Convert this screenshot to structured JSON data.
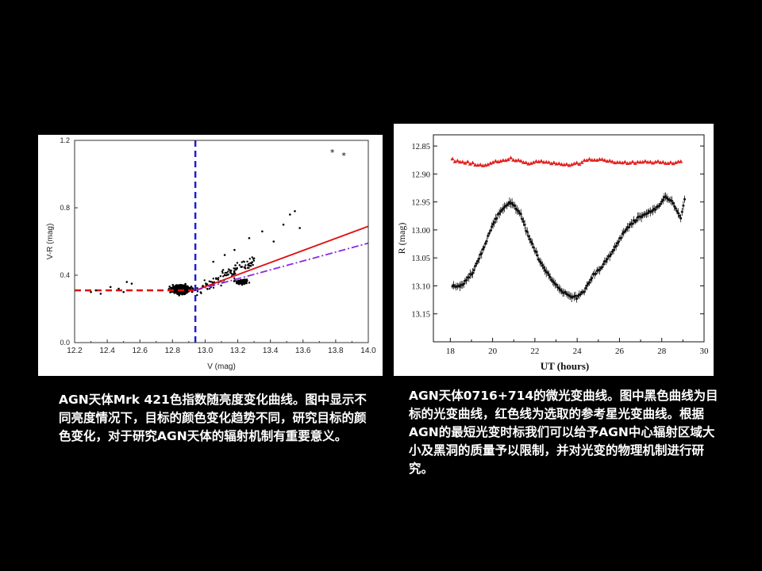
{
  "chart_data": [
    {
      "type": "scatter",
      "title": "",
      "xlabel": "V (mag)",
      "ylabel": "V-R (mag)",
      "xlim": [
        12.2,
        14.0
      ],
      "ylim": [
        0.0,
        1.2
      ],
      "xticks": [
        "12.2",
        "12.4",
        "12.6",
        "12.8",
        "13.0",
        "13.2",
        "13.4",
        "13.6",
        "13.8",
        "14.0"
      ],
      "yticks": [
        "0.0",
        "0.4",
        "0.8",
        "1.2"
      ],
      "vertical_line": {
        "x": 12.94,
        "style": "dashed",
        "color": "#1f1fd0"
      },
      "series": [
        {
          "type": "line",
          "color": "#e01010",
          "style": "dashed",
          "x": [
            12.2,
            12.94
          ],
          "y": [
            0.31,
            0.31
          ]
        },
        {
          "type": "line",
          "color": "#e01010",
          "style": "solid",
          "x": [
            12.94,
            14.0
          ],
          "y": [
            0.31,
            0.69
          ]
        },
        {
          "type": "line",
          "color": "#8a2be2",
          "style": "dashdot",
          "x": [
            12.94,
            14.0
          ],
          "y": [
            0.31,
            0.59
          ]
        },
        {
          "type": "scatter",
          "color": "#000000",
          "x": [
            12.3,
            12.33,
            12.36,
            12.42,
            12.47,
            12.5,
            12.52,
            12.55,
            13.05,
            13.12,
            13.18,
            13.27,
            13.35,
            13.42,
            13.48,
            13.52,
            13.55,
            13.58,
            13.12,
            13.22,
            13.3
          ],
          "y": [
            0.3,
            0.31,
            0.29,
            0.33,
            0.32,
            0.3,
            0.36,
            0.35,
            0.48,
            0.52,
            0.55,
            0.62,
            0.66,
            0.6,
            0.7,
            0.76,
            0.78,
            0.68,
            0.4,
            0.45,
            0.5
          ]
        },
        {
          "type": "scatter",
          "marker": "star",
          "color": "#000000",
          "x": [
            13.78,
            13.85
          ],
          "y": [
            1.13,
            1.11
          ]
        }
      ]
    },
    {
      "type": "line",
      "title": "",
      "xlabel": "UT  (hours)",
      "ylabel": "R  (mag)",
      "xlim": [
        17.2,
        30.0
      ],
      "ylim": [
        12.83,
        13.2
      ],
      "y_inverted": true,
      "xticks": [
        "18",
        "20",
        "22",
        "24",
        "26",
        "28",
        "30"
      ],
      "yticks": [
        "12.85",
        "12.90",
        "12.95",
        "13.00",
        "13.05",
        "13.10",
        "13.15"
      ],
      "series": [
        {
          "name": "",
          "marker": "triangle",
          "color": "#e32020",
          "x": [
            18.1,
            18.8,
            19.5,
            20.2,
            20.9,
            21.6,
            22.3,
            23.0,
            23.7,
            24.4,
            25.1,
            25.8,
            26.5,
            27.2,
            27.9,
            28.6,
            29.0
          ],
          "y": [
            12.875,
            12.88,
            12.885,
            12.878,
            12.872,
            12.88,
            12.877,
            12.882,
            12.884,
            12.876,
            12.874,
            12.878,
            12.88,
            12.877,
            12.879,
            12.882,
            12.875
          ]
        },
        {
          "name": "",
          "marker": "point-errorbar",
          "color": "#111111",
          "x": [
            18.1,
            18.5,
            19.0,
            19.5,
            20.0,
            20.5,
            20.9,
            21.3,
            21.8,
            22.3,
            22.8,
            23.3,
            23.7,
            24.0,
            24.3,
            24.8,
            25.3,
            25.8,
            26.3,
            26.8,
            27.3,
            27.8,
            28.2,
            28.5,
            28.9,
            29.1
          ],
          "y": [
            13.1,
            13.1,
            13.08,
            13.04,
            12.99,
            12.96,
            12.95,
            12.97,
            13.02,
            13.06,
            13.09,
            13.11,
            13.12,
            13.12,
            13.11,
            13.08,
            13.06,
            13.03,
            13.0,
            12.98,
            12.97,
            12.96,
            12.94,
            12.95,
            12.98,
            12.94
          ]
        }
      ]
    }
  ],
  "captions": {
    "left": "AGN天体Mrk 421色指数随亮度变化曲线。图中显示不同亮度情况下，目标的颜色变化趋势不同，研究目标的颜色变化，对于研究AGN天体的辐射机制有重要意义。",
    "right": "AGN天体0716+714的微光变曲线。图中黑色曲线为目标的光变曲线，红色线为选取的参考星光变曲线。根据AGN的最短光变时标我们可以给予AGN中心辐射区域大小及黑洞的质量予以限制，并对光变的物理机制进行研究。"
  }
}
